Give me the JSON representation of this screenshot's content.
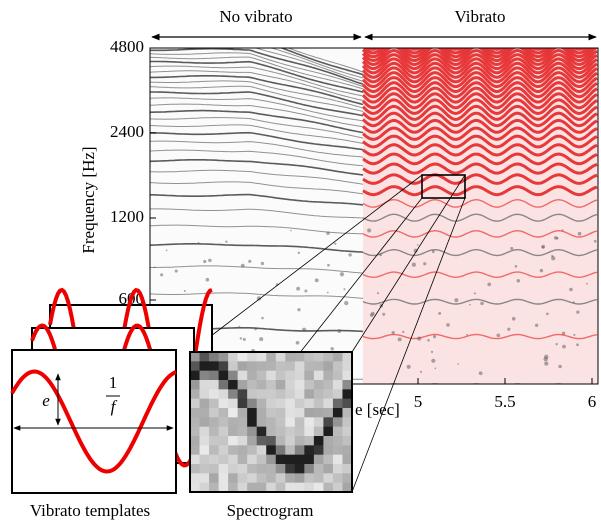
{
  "header": {
    "left_label": "No vibrato",
    "right_label": "Vibrato"
  },
  "axes": {
    "y_label": "Frequency [Hz]",
    "y_ticks": [
      4800,
      2400,
      1200,
      600
    ],
    "x_label": "e [sec]",
    "x_ticks": [
      5,
      5.5,
      6
    ]
  },
  "template": {
    "amplitude_label": "e",
    "period_numerator": "1",
    "period_denominator": "f"
  },
  "captions": {
    "templates": "Vibrato templates",
    "spectrogram": "Spectrogram"
  }
}
